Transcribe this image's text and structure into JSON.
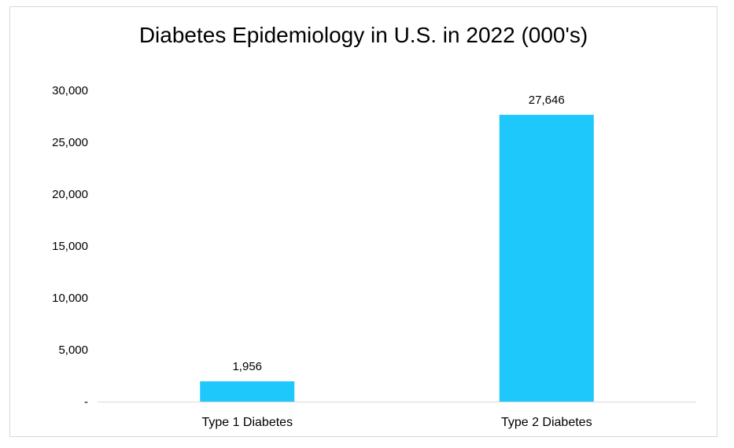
{
  "chart_data": {
    "type": "bar",
    "title": "Diabetes Epidemiology in U.S. in 2022 (000's)",
    "categories": [
      "Type 1 Diabetes",
      "Type 2 Diabetes"
    ],
    "values": [
      1956,
      27646
    ],
    "data_labels": [
      "1,956",
      "27,646"
    ],
    "ylim": [
      0,
      30000
    ],
    "yticks": [
      0,
      5000,
      10000,
      15000,
      20000,
      25000,
      30000
    ],
    "ytick_labels": [
      "-",
      "5,000",
      "10,000",
      "15,000",
      "20,000",
      "25,000",
      "30,000"
    ],
    "xlabel": "",
    "ylabel": "",
    "grid": false,
    "legend": "none",
    "bar_color": "#1EC8FA"
  }
}
